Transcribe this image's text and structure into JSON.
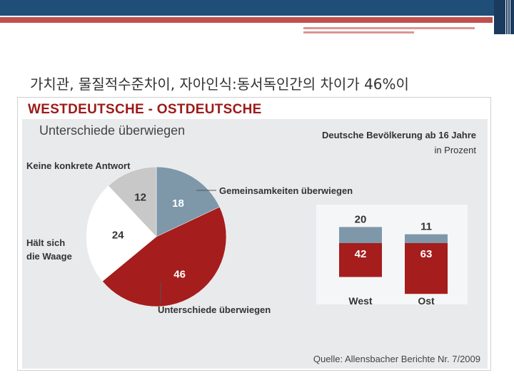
{
  "slide": {
    "title": "가치관, 물질적수준차이, 자아인식:동서독인간의 차이가 46%이"
  },
  "colors": {
    "red": "#a51d1d",
    "blue": "#7e98aa",
    "gray": "#c8c8c8",
    "white": "#ffffff",
    "heading_red": "#9d1a1a"
  },
  "chart_data": [
    {
      "type": "pie",
      "title": "WESTDEUTSCHE - OSTDEUTSCHE",
      "subtitle": "Unterschiede überwiegen",
      "population_label": "Deutsche Bevölkerung ab 16 Jahre",
      "unit_label": "in Prozent",
      "slices": [
        {
          "label": "Gemeinsamkeiten überwiegen",
          "value": 18,
          "color": "#7e98aa"
        },
        {
          "label": "Unterschiede überwiegen",
          "value": 46,
          "color": "#a51d1d"
        },
        {
          "label": "Hält sich die Waage",
          "value": 24,
          "color": "#ffffff"
        },
        {
          "label": "Keine konkrete Antwort",
          "value": 12,
          "color": "#c8c8c8"
        }
      ],
      "label_keine": "Keine konkrete Antwort",
      "label_haelt_1": "Hält sich",
      "label_haelt_2": "die Waage"
    },
    {
      "type": "bar",
      "stacked": true,
      "categories": [
        "West",
        "Ost"
      ],
      "series": [
        {
          "name": "Unterschiede überwiegen",
          "values": [
            42,
            63
          ],
          "color": "#a51d1d"
        },
        {
          "name": "Gemeinsamkeiten überwiegen",
          "values": [
            20,
            11
          ],
          "color": "#7e98aa"
        }
      ]
    }
  ],
  "source": "Quelle: Allensbacher Berichte Nr. 7/2009"
}
